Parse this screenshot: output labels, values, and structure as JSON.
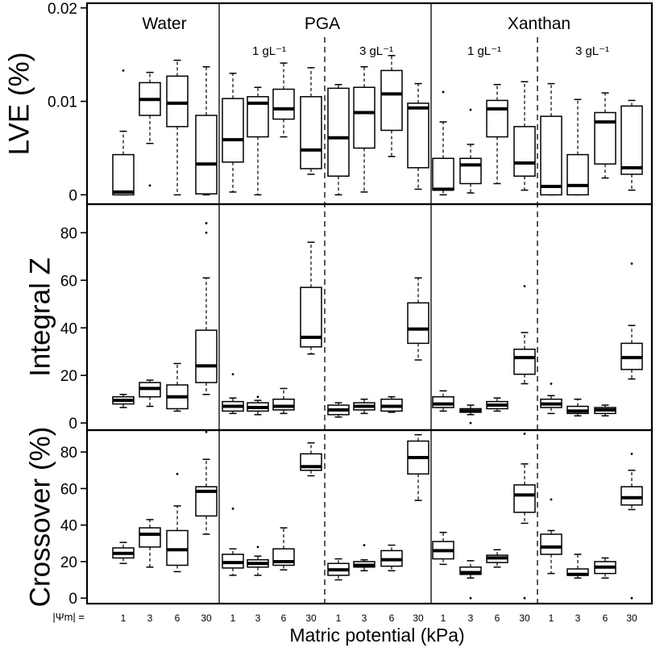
{
  "chart_data": {
    "type": "box",
    "xlabel": "Matric potential (kPa)",
    "x_prefix": "|Ψm| =",
    "x_ticks": [
      "1",
      "3",
      "6",
      "30",
      "1",
      "3",
      "6",
      "30",
      "1",
      "3",
      "6",
      "30",
      "1",
      "3",
      "6",
      "30",
      "1",
      "3",
      "6",
      "30"
    ],
    "group_labels": [
      "Water",
      "PGA",
      "Xanthan"
    ],
    "sub_labels": [
      "1 gL⁻¹",
      "3 gL⁻¹",
      "1 gL⁻¹",
      "3 gL⁻¹"
    ],
    "panels": [
      {
        "ylabel": "LVE (%)",
        "ylim": [
          -0.001,
          0.0205
        ],
        "yticks": [
          0,
          0.01,
          0.02
        ],
        "ytick_labels": [
          "0",
          "0.01",
          "0.02"
        ],
        "boxes": [
          {
            "min": 0.0,
            "q1": 0.0,
            "med": 0.0003,
            "q3": 0.0043,
            "max": 0.0068,
            "outliers": [
              0.0133
            ]
          },
          {
            "min": 0.0055,
            "q1": 0.0085,
            "med": 0.0102,
            "q3": 0.012,
            "max": 0.0131,
            "outliers": [
              0.001
            ]
          },
          {
            "min": 0.0,
            "q1": 0.0073,
            "med": 0.0098,
            "q3": 0.0127,
            "max": 0.0144,
            "outliers": []
          },
          {
            "min": 0.0,
            "q1": 0.0001,
            "med": 0.0033,
            "q3": 0.0085,
            "max": 0.0137,
            "outliers": []
          },
          {
            "min": 0.0003,
            "q1": 0.0035,
            "med": 0.0059,
            "q3": 0.0103,
            "max": 0.013,
            "outliers": []
          },
          {
            "min": 0.0,
            "q1": 0.0062,
            "med": 0.0098,
            "q3": 0.0105,
            "max": 0.0115,
            "outliers": []
          },
          {
            "min": 0.0062,
            "q1": 0.0081,
            "med": 0.0092,
            "q3": 0.0113,
            "max": 0.0141,
            "outliers": []
          },
          {
            "min": 0.0022,
            "q1": 0.0028,
            "med": 0.0048,
            "q3": 0.0105,
            "max": 0.0136,
            "outliers": []
          },
          {
            "min": 0.0,
            "q1": 0.002,
            "med": 0.0061,
            "q3": 0.0114,
            "max": 0.0118,
            "outliers": []
          },
          {
            "min": 0.0003,
            "q1": 0.005,
            "med": 0.0088,
            "q3": 0.0115,
            "max": 0.0137,
            "outliers": []
          },
          {
            "min": 0.0041,
            "q1": 0.0069,
            "med": 0.0108,
            "q3": 0.0133,
            "max": 0.0149,
            "outliers": []
          },
          {
            "min": 0.0006,
            "q1": 0.0029,
            "med": 0.0093,
            "q3": 0.0098,
            "max": 0.0119,
            "outliers": []
          },
          {
            "min": 0.0,
            "q1": 0.0005,
            "med": 0.0006,
            "q3": 0.0039,
            "max": 0.0078,
            "outliers": [
              0.011
            ]
          },
          {
            "min": 0.0002,
            "q1": 0.0012,
            "med": 0.0032,
            "q3": 0.0039,
            "max": 0.0054,
            "outliers": [
              0.0091
            ]
          },
          {
            "min": 0.0012,
            "q1": 0.0062,
            "med": 0.0092,
            "q3": 0.0101,
            "max": 0.0118,
            "outliers": []
          },
          {
            "min": 0.0005,
            "q1": 0.002,
            "med": 0.0034,
            "q3": 0.0073,
            "max": 0.0121,
            "outliers": []
          },
          {
            "min": 0.0,
            "q1": 0.0,
            "med": 0.0009,
            "q3": 0.0084,
            "max": 0.0119,
            "outliers": []
          },
          {
            "min": 0.0,
            "q1": 0.0,
            "med": 0.001,
            "q3": 0.0043,
            "max": 0.0102,
            "outliers": []
          },
          {
            "min": 0.0018,
            "q1": 0.0033,
            "med": 0.0078,
            "q3": 0.0088,
            "max": 0.0109,
            "outliers": []
          },
          {
            "min": 0.0005,
            "q1": 0.0022,
            "med": 0.0029,
            "q3": 0.0095,
            "max": 0.0101,
            "outliers": []
          }
        ]
      },
      {
        "ylabel": "Integral Z",
        "ylim": [
          -3,
          92
        ],
        "yticks": [
          0,
          20,
          40,
          60,
          80
        ],
        "ytick_labels": [
          "0",
          "20",
          "40",
          "60",
          "80"
        ],
        "boxes": [
          {
            "min": 6.5,
            "q1": 8.0,
            "med": 9.5,
            "q3": 11.0,
            "max": 12.0,
            "outliers": []
          },
          {
            "min": 7.0,
            "q1": 11.0,
            "med": 14.5,
            "q3": 17.0,
            "max": 18.0,
            "outliers": []
          },
          {
            "min": 5.0,
            "q1": 6.0,
            "med": 11.0,
            "q3": 16.0,
            "max": 25.0,
            "outliers": []
          },
          {
            "min": 12.0,
            "q1": 17.0,
            "med": 24.0,
            "q3": 39.0,
            "max": 61.0,
            "outliers": [
              80,
              84
            ]
          },
          {
            "min": 4.0,
            "q1": 5.0,
            "med": 7.0,
            "q3": 9.0,
            "max": 10.5,
            "outliers": [
              20.5
            ]
          },
          {
            "min": 3.5,
            "q1": 5.0,
            "med": 6.5,
            "q3": 8.5,
            "max": 9.5,
            "outliers": [
              11
            ]
          },
          {
            "min": 4.0,
            "q1": 5.5,
            "med": 7.0,
            "q3": 10.0,
            "max": 14.5,
            "outliers": []
          },
          {
            "min": 29.0,
            "q1": 32.0,
            "med": 36.0,
            "q3": 57.0,
            "max": 76.0,
            "outliers": []
          },
          {
            "min": 2.5,
            "q1": 3.5,
            "med": 5.5,
            "q3": 7.5,
            "max": 8.5,
            "outliers": []
          },
          {
            "min": 4.0,
            "q1": 5.5,
            "med": 7.0,
            "q3": 8.5,
            "max": 10.0,
            "outliers": []
          },
          {
            "min": 4.5,
            "q1": 5.0,
            "med": 7.0,
            "q3": 10.0,
            "max": 11.0,
            "outliers": []
          },
          {
            "min": 26.5,
            "q1": 33.5,
            "med": 39.5,
            "q3": 50.5,
            "max": 61.0,
            "outliers": []
          },
          {
            "min": 5.0,
            "q1": 6.5,
            "med": 8.0,
            "q3": 11.0,
            "max": 13.5,
            "outliers": []
          },
          {
            "min": 3.5,
            "q1": 4.5,
            "med": 5.0,
            "q3": 6.0,
            "max": 7.5,
            "outliers": [
              0
            ]
          },
          {
            "min": 5.0,
            "q1": 6.0,
            "med": 7.5,
            "q3": 9.0,
            "max": 10.5,
            "outliers": []
          },
          {
            "min": 16.5,
            "q1": 20.5,
            "med": 27.5,
            "q3": 31.0,
            "max": 38.0,
            "outliers": [
              57.5
            ]
          },
          {
            "min": 4.0,
            "q1": 6.5,
            "med": 8.0,
            "q3": 10.0,
            "max": 11.5,
            "outliers": [
              16.5
            ]
          },
          {
            "min": 3.0,
            "q1": 4.0,
            "med": 5.0,
            "q3": 7.0,
            "max": 10.0,
            "outliers": []
          },
          {
            "min": 3.0,
            "q1": 4.0,
            "med": 5.5,
            "q3": 6.5,
            "max": 7.5,
            "outliers": []
          },
          {
            "min": 18.5,
            "q1": 22.5,
            "med": 27.5,
            "q3": 33.5,
            "max": 41.0,
            "outliers": [
              67
            ]
          }
        ]
      },
      {
        "ylabel": "Crossover (%)",
        "ylim": [
          -3,
          92
        ],
        "yticks": [
          0,
          20,
          40,
          60,
          80
        ],
        "ytick_labels": [
          "0",
          "20",
          "40",
          "60",
          "80"
        ],
        "boxes": [
          {
            "min": 19.0,
            "q1": 22.0,
            "med": 24.5,
            "q3": 27.5,
            "max": 30.5,
            "outliers": []
          },
          {
            "min": 17.0,
            "q1": 28.0,
            "med": 35.0,
            "q3": 38.5,
            "max": 43.0,
            "outliers": []
          },
          {
            "min": 14.5,
            "q1": 18.0,
            "med": 26.5,
            "q3": 37.0,
            "max": 50.5,
            "outliers": [
              68
            ]
          },
          {
            "min": 35.0,
            "q1": 45.0,
            "med": 58.5,
            "q3": 61.0,
            "max": 76.0,
            "outliers": [
              91
            ]
          },
          {
            "min": 12.5,
            "q1": 16.5,
            "med": 19.5,
            "q3": 24.0,
            "max": 27.0,
            "outliers": [
              49
            ]
          },
          {
            "min": 12.5,
            "q1": 17.0,
            "med": 19.0,
            "q3": 21.0,
            "max": 23.0,
            "outliers": [
              28
            ]
          },
          {
            "min": 15.5,
            "q1": 18.0,
            "med": 20.0,
            "q3": 27.0,
            "max": 38.5,
            "outliers": []
          },
          {
            "min": 67.0,
            "q1": 70.0,
            "med": 72.0,
            "q3": 79.0,
            "max": 85.0,
            "outliers": []
          },
          {
            "min": 10.0,
            "q1": 12.5,
            "med": 15.5,
            "q3": 19.0,
            "max": 21.5,
            "outliers": []
          },
          {
            "min": 15.0,
            "q1": 17.0,
            "med": 18.0,
            "q3": 20.0,
            "max": 21.0,
            "outliers": [
              29
            ]
          },
          {
            "min": 15.0,
            "q1": 17.5,
            "med": 21.0,
            "q3": 26.0,
            "max": 29.0,
            "outliers": []
          },
          {
            "min": 53.5,
            "q1": 68.0,
            "med": 77.0,
            "q3": 86.0,
            "max": 89.5,
            "outliers": []
          },
          {
            "min": 18.5,
            "q1": 21.5,
            "med": 26.0,
            "q3": 31.0,
            "max": 36.0,
            "outliers": []
          },
          {
            "min": 11.0,
            "q1": 13.0,
            "med": 14.0,
            "q3": 17.0,
            "max": 20.5,
            "outliers": [
              0
            ]
          },
          {
            "min": 17.0,
            "q1": 19.5,
            "med": 22.0,
            "q3": 23.5,
            "max": 26.5,
            "outliers": []
          },
          {
            "min": 41.0,
            "q1": 47.0,
            "med": 56.5,
            "q3": 62.0,
            "max": 73.5,
            "outliers": [
              90,
              0
            ]
          },
          {
            "min": 13.5,
            "q1": 24.0,
            "med": 28.0,
            "q3": 35.0,
            "max": 37.0,
            "outliers": [
              54
            ]
          },
          {
            "min": 11.0,
            "q1": 12.5,
            "med": 13.0,
            "q3": 16.0,
            "max": 24.0,
            "outliers": []
          },
          {
            "min": 11.0,
            "q1": 13.5,
            "med": 17.0,
            "q3": 20.0,
            "max": 22.0,
            "outliers": []
          },
          {
            "min": 48.5,
            "q1": 51.0,
            "med": 55.0,
            "q3": 61.0,
            "max": 70.0,
            "outliers": [
              79,
              0
            ]
          }
        ]
      }
    ]
  }
}
